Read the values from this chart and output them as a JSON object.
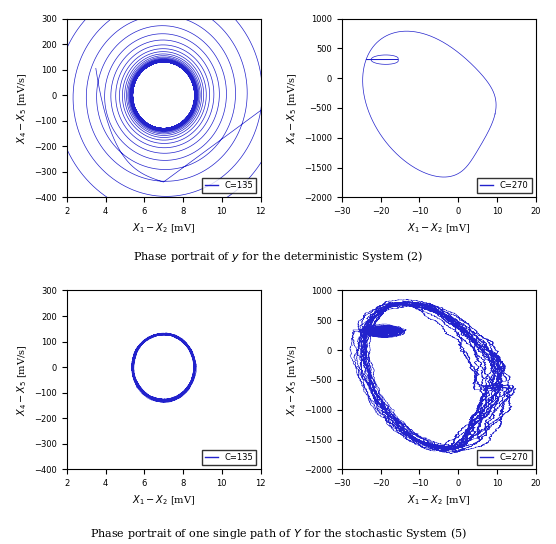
{
  "figure_size": [
    5.56,
    5.44
  ],
  "dpi": 100,
  "line_color": "#2222CC",
  "line_width": 0.5,
  "background_color": "#ffffff",
  "top_title": "Phase portrait of $y$ for the deterministic System (2)",
  "bottom_title": "Phase portrait of one single path of $Y$ for the stochastic System (5)",
  "subplots": [
    {
      "xlim": [
        2,
        12
      ],
      "ylim": [
        -400,
        300
      ],
      "xticks": [
        2,
        4,
        6,
        8,
        10,
        12
      ],
      "yticks": [
        -400,
        -300,
        -200,
        -100,
        0,
        100,
        200,
        300
      ],
      "legend": "C=135"
    },
    {
      "xlim": [
        -30,
        20
      ],
      "ylim": [
        -2000,
        1000
      ],
      "xticks": [
        -30,
        -20,
        -10,
        0,
        10,
        20
      ],
      "yticks": [
        -2000,
        -1500,
        -1000,
        -500,
        0,
        500,
        1000
      ],
      "legend": "C=270"
    },
    {
      "xlim": [
        2,
        12
      ],
      "ylim": [
        -400,
        300
      ],
      "xticks": [
        2,
        4,
        6,
        8,
        10,
        12
      ],
      "yticks": [
        -400,
        -300,
        -200,
        -100,
        0,
        100,
        200,
        300
      ],
      "legend": "C=135"
    },
    {
      "xlim": [
        -30,
        20
      ],
      "ylim": [
        -2000,
        1000
      ],
      "xticks": [
        -30,
        -20,
        -10,
        0,
        10,
        20
      ],
      "yticks": [
        -2000,
        -1500,
        -1000,
        -500,
        0,
        500,
        1000
      ],
      "legend": "C=270"
    }
  ],
  "xlabel": "$X_1 - X_2$ [mV]",
  "ylabel": "$X_4 - X_5$ [mV/s]"
}
